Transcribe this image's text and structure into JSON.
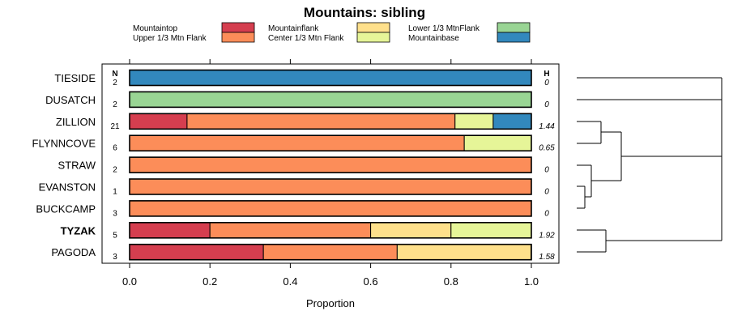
{
  "chart_data": {
    "type": "bar",
    "subtype": "stacked-horizontal-proportion",
    "title": "Mountains: sibling",
    "xlabel": "Proportion",
    "xlim": [
      0,
      1
    ],
    "xticks": [
      "0.0",
      "0.2",
      "0.4",
      "0.6",
      "0.8",
      "1.0"
    ],
    "n_header": "N",
    "h_header": "H",
    "segments": [
      {
        "name": "Mountaintop",
        "color": "#d53e4f"
      },
      {
        "name": "Upper 1/3 Mtn Flank",
        "color": "#fc8d59"
      },
      {
        "name": "Mountainflank",
        "color": "#fee08b"
      },
      {
        "name": "Center 1/3 Mtn Flank",
        "color": "#e6f598"
      },
      {
        "name": "Lower 1/3 MtnFlank",
        "color": "#99d594"
      },
      {
        "name": "Mountainbase",
        "color": "#3288bd"
      }
    ],
    "categories": [
      {
        "name": "TIESIDE",
        "n": "2",
        "h": "0",
        "bold": false,
        "values": [
          0,
          0,
          0,
          0,
          0,
          1
        ]
      },
      {
        "name": "DUSATCH",
        "n": "2",
        "h": "0",
        "bold": false,
        "values": [
          0,
          0,
          0,
          0,
          1,
          0
        ]
      },
      {
        "name": "ZILLION",
        "n": "21",
        "h": "1.44",
        "bold": false,
        "values": [
          0.143,
          0.667,
          0,
          0.095,
          0,
          0.095
        ]
      },
      {
        "name": "FLYNNCOVE",
        "n": "6",
        "h": "0.65",
        "bold": false,
        "values": [
          0,
          0.833,
          0,
          0.167,
          0,
          0
        ]
      },
      {
        "name": "STRAW",
        "n": "2",
        "h": "0",
        "bold": false,
        "values": [
          0,
          1,
          0,
          0,
          0,
          0
        ]
      },
      {
        "name": "EVANSTON",
        "n": "1",
        "h": "0",
        "bold": false,
        "values": [
          0,
          1,
          0,
          0,
          0,
          0
        ]
      },
      {
        "name": "BUCKCAMP",
        "n": "3",
        "h": "0",
        "bold": false,
        "values": [
          0,
          1,
          0,
          0,
          0,
          0
        ]
      },
      {
        "name": "TYZAK",
        "n": "5",
        "h": "1.92",
        "bold": true,
        "values": [
          0.2,
          0.4,
          0.2,
          0.2,
          0,
          0
        ]
      },
      {
        "name": "PAGODA",
        "n": "3",
        "h": "1.58",
        "bold": false,
        "values": [
          0.333,
          0.333,
          0.333,
          0,
          0,
          0
        ]
      }
    ]
  }
}
